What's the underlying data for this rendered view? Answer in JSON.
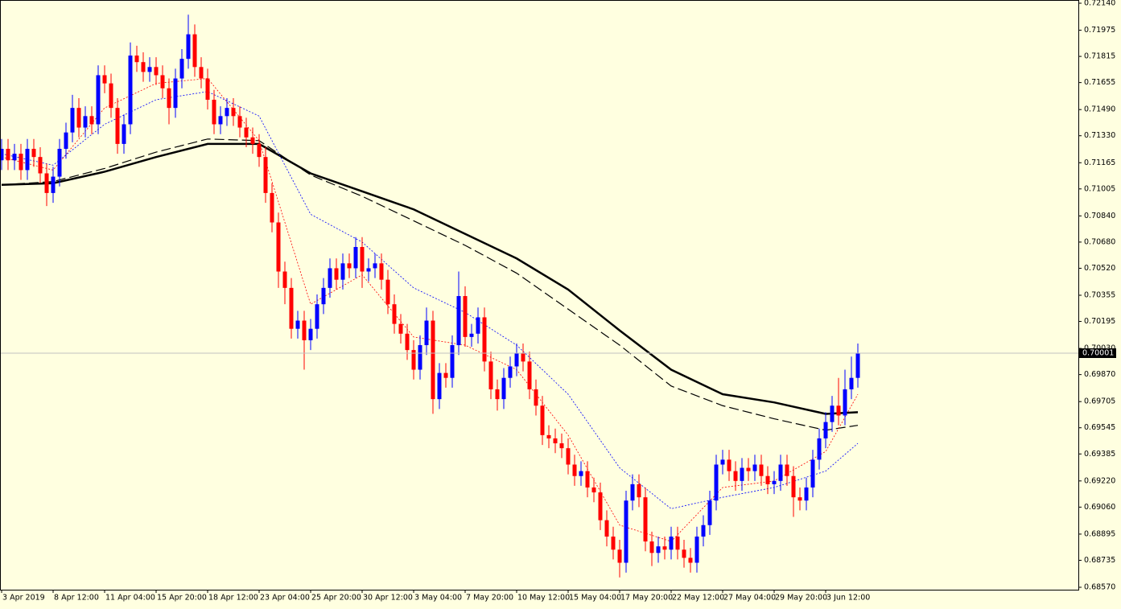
{
  "chart_data": {
    "type": "candlestick",
    "background": "#ffffe0",
    "up_color": "#0000ff",
    "down_color": "#ff0000",
    "ylim": [
      0.6857,
      0.7214
    ],
    "yticks": [
      {
        "value": 0.7214,
        "label": "0.72140"
      },
      {
        "value": 0.71975,
        "label": "0.71975"
      },
      {
        "value": 0.71815,
        "label": "0.71815"
      },
      {
        "value": 0.71655,
        "label": "0.71655"
      },
      {
        "value": 0.7149,
        "label": "0.71490"
      },
      {
        "value": 0.7133,
        "label": "0.71330"
      },
      {
        "value": 0.71165,
        "label": "0.71165"
      },
      {
        "value": 0.71005,
        "label": "0.71005"
      },
      {
        "value": 0.7084,
        "label": "0.70840"
      },
      {
        "value": 0.7068,
        "label": "0.70680"
      },
      {
        "value": 0.7052,
        "label": "0.70520"
      },
      {
        "value": 0.70355,
        "label": "0.70355"
      },
      {
        "value": 0.70195,
        "label": "0.70195"
      },
      {
        "value": 0.7003,
        "label": "0.70030"
      },
      {
        "value": 0.6987,
        "label": "0.69870"
      },
      {
        "value": 0.69705,
        "label": "0.69705"
      },
      {
        "value": 0.69545,
        "label": "0.69545"
      },
      {
        "value": 0.69385,
        "label": "0.69385"
      },
      {
        "value": 0.6922,
        "label": "0.69220"
      },
      {
        "value": 0.6906,
        "label": "0.69060"
      },
      {
        "value": 0.68895,
        "label": "0.68895"
      },
      {
        "value": 0.68735,
        "label": "0.68735"
      },
      {
        "value": 0.6857,
        "label": "0.68570"
      }
    ],
    "xticks": [
      {
        "value": 0,
        "label": "3 Apr 2019"
      },
      {
        "value": 8,
        "label": "8 Apr 12:00"
      },
      {
        "value": 16,
        "label": "11 Apr 04:00"
      },
      {
        "value": 24,
        "label": "15 Apr 20:00"
      },
      {
        "value": 32,
        "label": "18 Apr 12:00"
      },
      {
        "value": 40,
        "label": "23 Apr 04:00"
      },
      {
        "value": 48,
        "label": "25 Apr 20:00"
      },
      {
        "value": 56,
        "label": "30 Apr 12:00"
      },
      {
        "value": 64,
        "label": "3 May 04:00"
      },
      {
        "value": 72,
        "label": "7 May 20:00"
      },
      {
        "value": 80,
        "label": "10 May 12:00"
      },
      {
        "value": 88,
        "label": "15 May 04:00"
      },
      {
        "value": 96,
        "label": "17 May 20:00"
      },
      {
        "value": 104,
        "label": "22 May 12:00"
      },
      {
        "value": 112,
        "label": "27 May 04:00"
      },
      {
        "value": 120,
        "label": "29 May 20:00"
      },
      {
        "value": 128,
        "label": "3 Jun 12:00"
      }
    ],
    "current_price": {
      "value": 0.70001,
      "label": "0.70001"
    },
    "open": [
      0.7118,
      0.7125,
      0.7118,
      0.7122,
      0.7112,
      0.7125,
      0.712,
      0.711,
      0.7098,
      0.7108,
      0.7125,
      0.7135,
      0.715,
      0.7138,
      0.7145,
      0.714,
      0.717,
      0.7165,
      0.715,
      0.7128,
      0.714,
      0.7182,
      0.7178,
      0.7172,
      0.7175,
      0.717,
      0.7162,
      0.715,
      0.7168,
      0.718,
      0.7195,
      0.7175,
      0.7168,
      0.7155,
      0.714,
      0.7145,
      0.715,
      0.7145,
      0.7138,
      0.7132,
      0.7128,
      0.712,
      0.7098,
      0.708,
      0.705,
      0.704,
      0.7015,
      0.702,
      0.7008,
      0.7015,
      0.703,
      0.704,
      0.7052,
      0.7045,
      0.7055,
      0.7052,
      0.7065,
      0.705,
      0.7052,
      0.7055,
      0.7045,
      0.703,
      0.7018,
      0.7012,
      0.7002,
      0.699,
      0.7005,
      0.702,
      0.6972,
      0.6988,
      0.6985,
      0.7005,
      0.7035,
      0.701,
      0.7012,
      0.7022,
      0.6995,
      0.6978,
      0.6972,
      0.6985,
      0.6992,
      0.7,
      0.6995,
      0.6978,
      0.6968,
      0.695,
      0.6948,
      0.6945,
      0.6942,
      0.6932,
      0.6925,
      0.6928,
      0.6918,
      0.6915,
      0.6898,
      0.6888,
      0.688,
      0.6872,
      0.691,
      0.692,
      0.6912,
      0.6885,
      0.6878,
      0.6882,
      0.688,
      0.6888,
      0.688,
      0.6875,
      0.6872,
      0.6888,
      0.6895,
      0.691,
      0.6932,
      0.6935,
      0.6928,
      0.6922,
      0.693,
      0.6928,
      0.6932,
      0.6925,
      0.692,
      0.6922,
      0.6932,
      0.6925,
      0.6912,
      0.691,
      0.6918,
      0.6935,
      0.6948,
      0.6958,
      0.6968,
      0.6962,
      0.6978,
      0.6985
    ],
    "high": [
      0.7131,
      0.7131,
      0.7128,
      0.7128,
      0.7131,
      0.7131,
      0.7126,
      0.7116,
      0.7114,
      0.7131,
      0.7141,
      0.7158,
      0.7156,
      0.7151,
      0.7151,
      0.7176,
      0.7176,
      0.7171,
      0.7156,
      0.7146,
      0.719,
      0.7188,
      0.7184,
      0.7181,
      0.7181,
      0.7176,
      0.7168,
      0.7174,
      0.7186,
      0.7207,
      0.7201,
      0.7181,
      0.7174,
      0.7161,
      0.7151,
      0.7156,
      0.7156,
      0.7151,
      0.7144,
      0.7138,
      0.7134,
      0.7126,
      0.7104,
      0.7086,
      0.7056,
      0.7046,
      0.7026,
      0.7026,
      0.7021,
      0.7036,
      0.7046,
      0.7058,
      0.7058,
      0.7061,
      0.7061,
      0.7071,
      0.7071,
      0.7058,
      0.7061,
      0.7061,
      0.7051,
      0.7036,
      0.7024,
      0.7018,
      0.7008,
      0.7011,
      0.7028,
      0.7026,
      0.6994,
      0.6994,
      0.7011,
      0.705,
      0.7041,
      0.7018,
      0.7028,
      0.7028,
      0.7001,
      0.6984,
      0.6991,
      0.6998,
      0.7006,
      0.7006,
      0.7001,
      0.6984,
      0.6974,
      0.6956,
      0.6954,
      0.6951,
      0.6948,
      0.6938,
      0.6934,
      0.6934,
      0.6924,
      0.6921,
      0.6904,
      0.6894,
      0.6886,
      0.6916,
      0.6926,
      0.6926,
      0.6918,
      0.6891,
      0.6888,
      0.6888,
      0.6894,
      0.6894,
      0.6886,
      0.6881,
      0.6894,
      0.6901,
      0.6916,
      0.6938,
      0.6941,
      0.6941,
      0.6934,
      0.6936,
      0.6936,
      0.6938,
      0.6938,
      0.6931,
      0.6928,
      0.6938,
      0.6938,
      0.6931,
      0.6918,
      0.6924,
      0.6941,
      0.6954,
      0.6964,
      0.6974,
      0.6985,
      0.699,
      0.6998,
      0.7006
    ],
    "low": [
      0.7112,
      0.7112,
      0.7112,
      0.7106,
      0.7106,
      0.7114,
      0.7104,
      0.709,
      0.7092,
      0.7102,
      0.7119,
      0.7129,
      0.7132,
      0.7132,
      0.7134,
      0.7134,
      0.7159,
      0.7144,
      0.7122,
      0.7122,
      0.7134,
      0.7172,
      0.7166,
      0.7166,
      0.7164,
      0.7156,
      0.714,
      0.7144,
      0.7162,
      0.7174,
      0.7169,
      0.7162,
      0.7149,
      0.7134,
      0.7134,
      0.7139,
      0.7139,
      0.7132,
      0.7126,
      0.7122,
      0.7114,
      0.7092,
      0.7074,
      0.704,
      0.703,
      0.7009,
      0.7009,
      0.699,
      0.7002,
      0.7009,
      0.7024,
      0.7034,
      0.7039,
      0.7039,
      0.7046,
      0.7046,
      0.704,
      0.7044,
      0.7046,
      0.7039,
      0.7024,
      0.7012,
      0.7006,
      0.6996,
      0.6984,
      0.6984,
      0.6999,
      0.6963,
      0.6966,
      0.6979,
      0.6979,
      0.6999,
      0.7004,
      0.7004,
      0.7006,
      0.6989,
      0.6972,
      0.6965,
      0.6966,
      0.6979,
      0.6986,
      0.6989,
      0.6972,
      0.6962,
      0.6944,
      0.6942,
      0.6939,
      0.6936,
      0.6926,
      0.6919,
      0.6919,
      0.6912,
      0.6909,
      0.6892,
      0.6882,
      0.6874,
      0.6863,
      0.6866,
      0.6904,
      0.6906,
      0.6879,
      0.687,
      0.6872,
      0.6874,
      0.6874,
      0.6874,
      0.6869,
      0.6866,
      0.6866,
      0.6882,
      0.6889,
      0.6904,
      0.6926,
      0.6922,
      0.6916,
      0.6916,
      0.6922,
      0.6922,
      0.6919,
      0.6914,
      0.6914,
      0.6916,
      0.6919,
      0.69,
      0.6904,
      0.6904,
      0.6912,
      0.6929,
      0.6942,
      0.6952,
      0.6956,
      0.6956,
      0.6972,
      0.6979
    ],
    "close": [
      0.7125,
      0.7118,
      0.7122,
      0.7112,
      0.7125,
      0.712,
      0.711,
      0.7098,
      0.7108,
      0.7125,
      0.7135,
      0.715,
      0.7138,
      0.7145,
      0.714,
      0.717,
      0.7165,
      0.715,
      0.7128,
      0.714,
      0.7182,
      0.7178,
      0.7172,
      0.7175,
      0.717,
      0.7162,
      0.715,
      0.7168,
      0.718,
      0.7195,
      0.7175,
      0.7168,
      0.7155,
      0.714,
      0.7145,
      0.715,
      0.7145,
      0.7138,
      0.7132,
      0.7128,
      0.712,
      0.7098,
      0.708,
      0.705,
      0.704,
      0.7015,
      0.702,
      0.7008,
      0.7015,
      0.703,
      0.704,
      0.7052,
      0.7045,
      0.7055,
      0.7052,
      0.7065,
      0.705,
      0.7052,
      0.7055,
      0.7045,
      0.703,
      0.7018,
      0.7012,
      0.7002,
      0.699,
      0.7005,
      0.702,
      0.6972,
      0.6988,
      0.6985,
      0.7005,
      0.7035,
      0.701,
      0.7012,
      0.7022,
      0.6995,
      0.6978,
      0.6972,
      0.6985,
      0.6992,
      0.7,
      0.6995,
      0.6978,
      0.6968,
      0.695,
      0.6948,
      0.6945,
      0.6942,
      0.6932,
      0.6925,
      0.6928,
      0.6918,
      0.6915,
      0.6898,
      0.6888,
      0.688,
      0.6872,
      0.691,
      0.692,
      0.6912,
      0.6885,
      0.6878,
      0.6882,
      0.688,
      0.6888,
      0.688,
      0.6875,
      0.6872,
      0.6888,
      0.6895,
      0.691,
      0.6932,
      0.6935,
      0.6928,
      0.6922,
      0.693,
      0.6928,
      0.6932,
      0.6925,
      0.692,
      0.6922,
      0.6932,
      0.6925,
      0.6912,
      0.691,
      0.6918,
      0.6935,
      0.6948,
      0.6958,
      0.6968,
      0.6962,
      0.6978,
      0.6985,
      0.7
    ],
    "lines": [
      {
        "color": "#000000",
        "width": 2.5,
        "dash": "none",
        "x": [
          0,
          8,
          16,
          24,
          32,
          40,
          48,
          56,
          64,
          72,
          80,
          88,
          96,
          104,
          112,
          120,
          128,
          133
        ],
        "values": [
          0.7103,
          0.7104,
          0.7111,
          0.712,
          0.7128,
          0.7128,
          0.711,
          0.7099,
          0.7088,
          0.7073,
          0.7058,
          0.7039,
          0.7014,
          0.699,
          0.6975,
          0.697,
          0.6963,
          0.6964
        ]
      },
      {
        "color": "#000000",
        "width": 1.2,
        "dash": "12 5",
        "x": [
          0,
          8,
          16,
          24,
          32,
          40,
          48,
          56,
          64,
          72,
          80,
          88,
          96,
          104,
          112,
          120,
          128,
          133
        ],
        "values": [
          0.7103,
          0.7105,
          0.7113,
          0.7123,
          0.7131,
          0.713,
          0.7109,
          0.7096,
          0.7081,
          0.7066,
          0.7049,
          0.7027,
          0.7005,
          0.698,
          0.6968,
          0.696,
          0.6953,
          0.6956
        ]
      },
      {
        "color": "#ff0000",
        "width": 0.8,
        "dash": "2 2",
        "x": [
          0,
          8,
          16,
          24,
          32,
          40,
          48,
          56,
          64,
          72,
          80,
          88,
          96,
          104,
          112,
          120,
          128,
          133
        ],
        "values": [
          0.712,
          0.7112,
          0.715,
          0.7165,
          0.7168,
          0.713,
          0.703,
          0.7048,
          0.701,
          0.7005,
          0.699,
          0.695,
          0.6895,
          0.6885,
          0.6918,
          0.6922,
          0.694,
          0.6975
        ]
      },
      {
        "color": "#0000ff",
        "width": 0.8,
        "dash": "2 2",
        "x": [
          0,
          8,
          16,
          24,
          32,
          40,
          48,
          56,
          64,
          72,
          80,
          88,
          96,
          104,
          112,
          120,
          128,
          133
        ],
        "values": [
          0.7122,
          0.7115,
          0.714,
          0.7155,
          0.716,
          0.7145,
          0.7085,
          0.7068,
          0.704,
          0.7025,
          0.7005,
          0.6975,
          0.693,
          0.6905,
          0.6912,
          0.6918,
          0.6928,
          0.6945
        ]
      }
    ]
  }
}
